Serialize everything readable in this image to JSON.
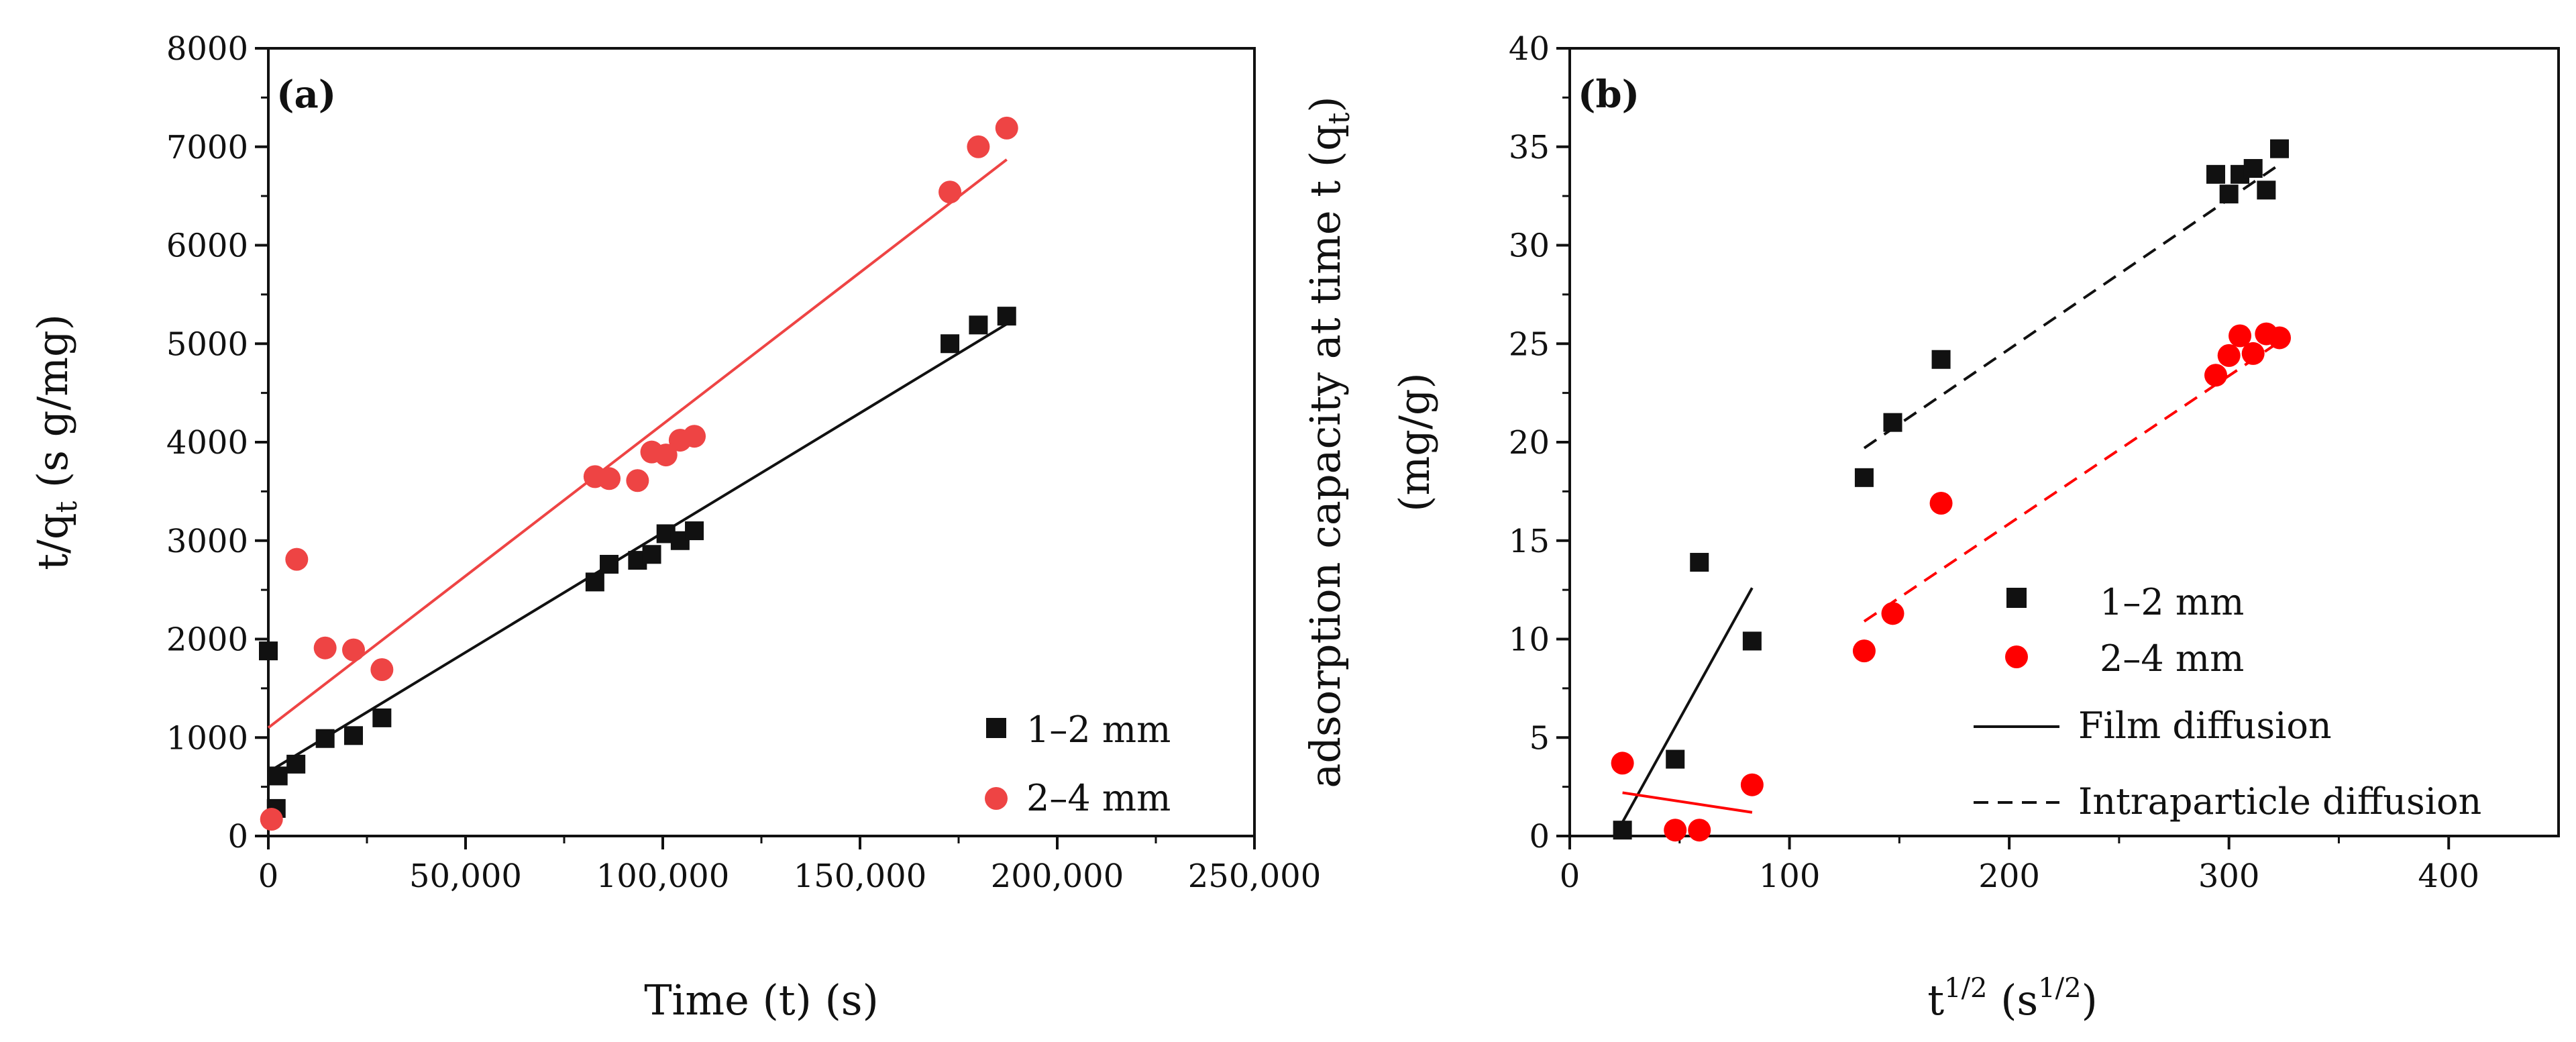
{
  "chart_data": [
    {
      "panel": "(a)",
      "type": "scatter",
      "xlabel": "Time (t) (s)",
      "ylabel_main": "t/q",
      "ylabel_sub": "t",
      "ylabel_tail": " (s g/mg)",
      "xlim": [
        0,
        250000
      ],
      "ylim": [
        0,
        8000
      ],
      "xticks": [
        0,
        50000,
        100000,
        150000,
        200000,
        250000
      ],
      "xtick_labels": [
        "0",
        "50,000",
        "100,000",
        "150,000",
        "200,000",
        "250,000"
      ],
      "yticks": [
        0,
        1000,
        2000,
        3000,
        4000,
        5000,
        6000,
        7000,
        8000
      ],
      "ytick_labels": [
        "0",
        "1000",
        "2000",
        "3000",
        "4000",
        "5000",
        "6000",
        "7000",
        "8000"
      ],
      "legend_position": "bottom-right",
      "series": [
        {
          "name": "1–2 mm",
          "color": "#111111",
          "marker": "square",
          "points": [
            [
              0,
              1880
            ],
            [
              2000,
              280
            ],
            [
              2500,
              610
            ],
            [
              7000,
              730
            ],
            [
              14400,
              990
            ],
            [
              21600,
              1020
            ],
            [
              28800,
              1200
            ],
            [
              82800,
              2580
            ],
            [
              86400,
              2760
            ],
            [
              93600,
              2800
            ],
            [
              97200,
              2860
            ],
            [
              100800,
              3070
            ],
            [
              104400,
              3000
            ],
            [
              108000,
              3100
            ],
            [
              172800,
              5000
            ],
            [
              180000,
              5190
            ],
            [
              187200,
              5280
            ]
          ],
          "fit": [
            [
              0,
              650
            ],
            [
              187200,
              5200
            ]
          ]
        },
        {
          "name": "2–4 mm",
          "color": "#ee4444",
          "marker": "circle",
          "points": [
            [
              800,
              170
            ],
            [
              7200,
              2810
            ],
            [
              14400,
              1910
            ],
            [
              21600,
              1890
            ],
            [
              28800,
              1690
            ],
            [
              82800,
              3650
            ],
            [
              86400,
              3630
            ],
            [
              93600,
              3610
            ],
            [
              97200,
              3900
            ],
            [
              100800,
              3870
            ],
            [
              104400,
              4020
            ],
            [
              108000,
              4060
            ],
            [
              172800,
              6540
            ],
            [
              180000,
              7000
            ],
            [
              187200,
              7190
            ]
          ],
          "fit": [
            [
              0,
              1100
            ],
            [
              187200,
              6870
            ]
          ]
        }
      ]
    },
    {
      "panel": "(b)",
      "type": "scatter",
      "xlabel_main": "t",
      "xlabel_sup1": "1/2",
      "xlabel_mid": " (s",
      "xlabel_sup2": "1/2",
      "xlabel_tail": ")",
      "ylabel_line1": "adsorption capacity at time t (q",
      "ylabel_line1_sub": "t",
      "ylabel_line1_tail": ")",
      "ylabel_line2": "(mg/g)",
      "xlim": [
        0,
        450
      ],
      "ylim": [
        0,
        40
      ],
      "xticks": [
        0,
        100,
        200,
        300,
        400
      ],
      "xtick_labels": [
        "0",
        "100",
        "200",
        "300",
        "400"
      ],
      "yticks": [
        0,
        5,
        10,
        15,
        20,
        25,
        30,
        35,
        40
      ],
      "ytick_labels": [
        "0",
        "5",
        "10",
        "15",
        "20",
        "25",
        "30",
        "35",
        "40"
      ],
      "legend_position": "center-right",
      "legend_film": "Film diffusion",
      "legend_intra": "Intraparticle diffusion",
      "series": [
        {
          "name": "1–2 mm",
          "color": "#111111",
          "marker": "square",
          "points": [
            [
              24,
              0.3
            ],
            [
              48,
              3.9
            ],
            [
              59,
              13.9
            ],
            [
              83,
              9.9
            ],
            [
              134,
              18.2
            ],
            [
              147,
              21.0
            ],
            [
              169,
              24.2
            ],
            [
              294,
              33.6
            ],
            [
              300,
              32.6
            ],
            [
              305,
              33.6
            ],
            [
              311,
              33.9
            ],
            [
              317,
              32.8
            ],
            [
              323,
              34.9
            ]
          ],
          "film_fit": [
            [
              24,
              0.7
            ],
            [
              83,
              12.6
            ]
          ],
          "intra_fit": [
            [
              134,
              19.7
            ],
            [
              323,
              34.1
            ]
          ]
        },
        {
          "name": "2–4 mm",
          "color": "#ff0000",
          "marker": "circle",
          "points": [
            [
              24,
              3.7
            ],
            [
              48,
              0.3
            ],
            [
              59,
              0.3
            ],
            [
              83,
              2.6
            ],
            [
              134,
              9.4
            ],
            [
              147,
              11.3
            ],
            [
              169,
              16.9
            ],
            [
              294,
              23.4
            ],
            [
              300,
              24.4
            ],
            [
              305,
              25.4
            ],
            [
              311,
              24.5
            ],
            [
              317,
              25.5
            ],
            [
              323,
              25.3
            ]
          ],
          "film_fit": [
            [
              24,
              2.2
            ],
            [
              83,
              1.2
            ]
          ],
          "intra_fit": [
            [
              134,
              10.9
            ],
            [
              323,
              25.1
            ]
          ]
        }
      ]
    }
  ]
}
